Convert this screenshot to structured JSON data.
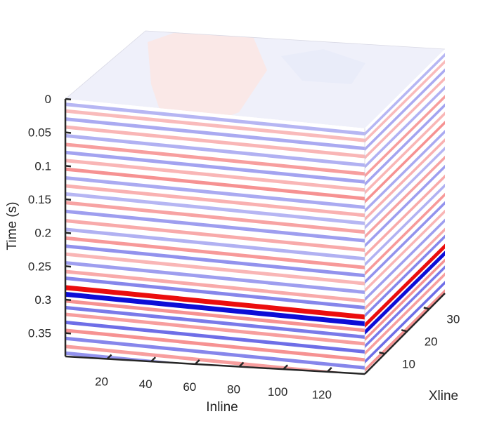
{
  "chart_data": {
    "type": "heatmap",
    "subtype": "3d-seismic-cube",
    "title": "",
    "xlabel": "Inline",
    "ylabel": "Xline",
    "zlabel": "Time (s)",
    "xlim": [
      1,
      137
    ],
    "ylim": [
      1,
      37
    ],
    "zlim": [
      0,
      0.385
    ],
    "z_reversed": true,
    "grid": false,
    "colormap": [
      "#0000cc",
      "#ffffff",
      "#cc0000"
    ],
    "x_ticks": [
      20,
      40,
      60,
      80,
      100,
      120
    ],
    "x_tick_labels": [
      "20",
      "40",
      "60",
      "80",
      "100",
      "120"
    ],
    "y_ticks": [
      10,
      20,
      30
    ],
    "y_tick_labels": [
      "10",
      "20",
      "30"
    ],
    "z_ticks": [
      0,
      0.05,
      0.1,
      0.15,
      0.2,
      0.25,
      0.3,
      0.35
    ],
    "z_tick_labels": [
      "0",
      "0.05",
      "0.1",
      "0.15",
      "0.2",
      "0.25",
      "0.3",
      "0.35"
    ],
    "reflectors": [
      {
        "t": 0.008,
        "amp": -0.3
      },
      {
        "t": 0.018,
        "amp": 0.28
      },
      {
        "t": 0.03,
        "amp": -0.35
      },
      {
        "t": 0.042,
        "amp": 0.3
      },
      {
        "t": 0.055,
        "amp": -0.32
      },
      {
        "t": 0.068,
        "amp": 0.4
      },
      {
        "t": 0.08,
        "amp": -0.38
      },
      {
        "t": 0.092,
        "amp": 0.3
      },
      {
        "t": 0.105,
        "amp": 0.45
      },
      {
        "t": 0.118,
        "amp": -0.35
      },
      {
        "t": 0.13,
        "amp": 0.32
      },
      {
        "t": 0.142,
        "amp": -0.3
      },
      {
        "t": 0.155,
        "amp": 0.38
      },
      {
        "t": 0.168,
        "amp": -0.4
      },
      {
        "t": 0.182,
        "amp": 0.35
      },
      {
        "t": 0.195,
        "amp": -0.32
      },
      {
        "t": 0.208,
        "amp": 0.42
      },
      {
        "t": 0.22,
        "amp": -0.45
      },
      {
        "t": 0.232,
        "amp": 0.3
      },
      {
        "t": 0.245,
        "amp": -0.4
      },
      {
        "t": 0.258,
        "amp": 0.35
      },
      {
        "t": 0.268,
        "amp": -0.5
      },
      {
        "t": 0.282,
        "amp": 1.0
      },
      {
        "t": 0.292,
        "amp": -1.0
      },
      {
        "t": 0.302,
        "amp": 0.45
      },
      {
        "t": 0.312,
        "amp": -0.55
      },
      {
        "t": 0.322,
        "amp": 0.4
      },
      {
        "t": 0.334,
        "amp": -0.6
      },
      {
        "t": 0.346,
        "amp": 0.45
      },
      {
        "t": 0.358,
        "amp": -0.5
      },
      {
        "t": 0.37,
        "amp": 0.4
      },
      {
        "t": 0.38,
        "amp": -0.45
      }
    ]
  }
}
